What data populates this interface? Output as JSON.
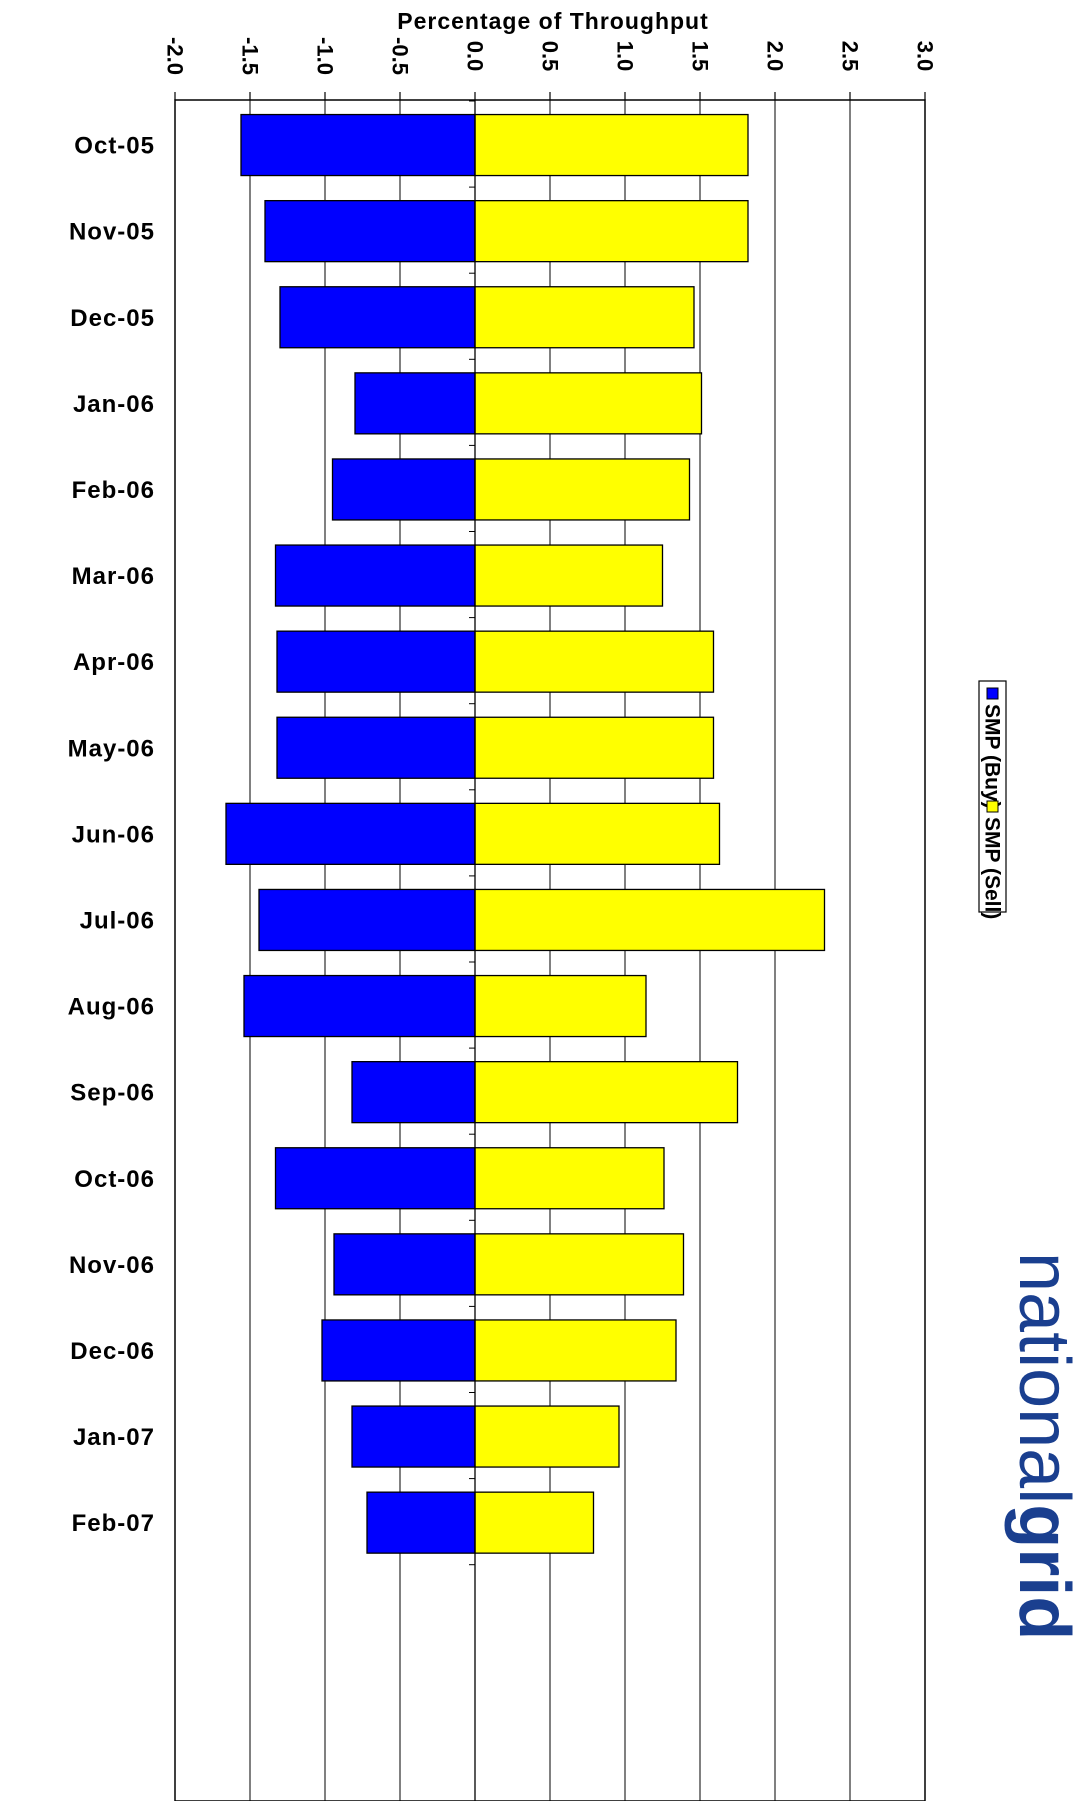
{
  "chart_data": {
    "type": "bar",
    "orientation": "horizontal-diverging",
    "title": "",
    "xlabel": "Percentage of Throughput",
    "ylabel": "",
    "xlim": [
      -2.0,
      3.0
    ],
    "xticks": [
      "-2.0",
      "-1.5",
      "-1.0",
      "-0.5",
      "0.0",
      "0.5",
      "1.0",
      "1.5",
      "2.0",
      "2.5",
      "3.0"
    ],
    "grid": true,
    "legend_position": "right",
    "categories": [
      "Oct-05",
      "Nov-05",
      "Dec-05",
      "Jan-06",
      "Feb-06",
      "Mar-06",
      "Apr-06",
      "May-06",
      "Jun-06",
      "Jul-06",
      "Aug-06",
      "Sep-06",
      "Oct-06",
      "Nov-06",
      "Dec-06",
      "Jan-07",
      "Feb-07"
    ],
    "series": [
      {
        "name": "SMP (Buy)",
        "color": "#0000ff",
        "values": [
          -1.56,
          -1.4,
          -1.3,
          -0.8,
          -0.95,
          -1.33,
          -1.32,
          -1.32,
          -1.66,
          -1.44,
          -1.54,
          -0.82,
          -1.33,
          -0.94,
          -1.02,
          -0.82,
          -0.72
        ]
      },
      {
        "name": "SMP (Sell)",
        "color": "#ffff00",
        "values": [
          1.82,
          1.82,
          1.46,
          1.51,
          1.43,
          1.25,
          1.59,
          1.59,
          1.63,
          2.33,
          1.14,
          1.75,
          1.26,
          1.39,
          1.34,
          0.96,
          0.79
        ]
      }
    ]
  },
  "logo": {
    "text_light": "national",
    "text_bold": "grid",
    "color": "#1a3f8f"
  }
}
